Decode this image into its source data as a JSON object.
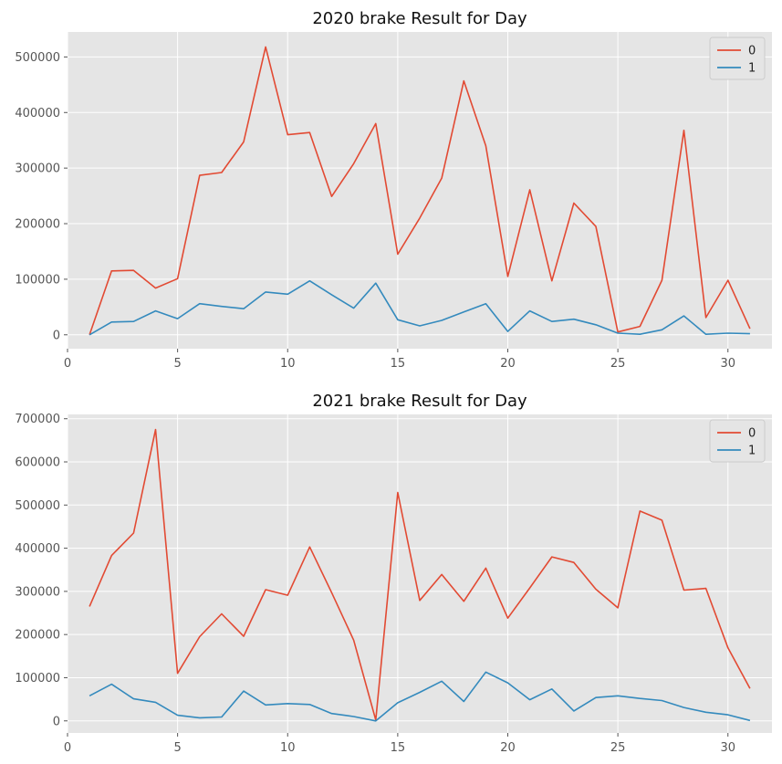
{
  "chart_data": [
    {
      "type": "line",
      "title": "2020 brake Result for Day",
      "xlabel": "",
      "ylabel": "",
      "xlim": [
        0,
        32
      ],
      "ylim": [
        -25000,
        545000
      ],
      "xticks": [
        0,
        5,
        10,
        15,
        20,
        25,
        30
      ],
      "yticks": [
        0,
        100000,
        200000,
        300000,
        400000,
        500000
      ],
      "grid": true,
      "legend": "top-right",
      "x": [
        1,
        2,
        3,
        4,
        5,
        6,
        7,
        8,
        9,
        10,
        11,
        12,
        13,
        14,
        15,
        16,
        17,
        18,
        19,
        20,
        21,
        22,
        23,
        24,
        25,
        26,
        27,
        28,
        29,
        30,
        31
      ],
      "series": [
        {
          "name": "0",
          "color": "#E24A33",
          "values": [
            0,
            115000,
            116000,
            84000,
            101000,
            287000,
            292000,
            347000,
            518000,
            360000,
            364000,
            249000,
            308000,
            380000,
            145000,
            210000,
            282000,
            457000,
            340000,
            105000,
            261000,
            97000,
            237000,
            195000,
            5000,
            15000,
            98000,
            368000,
            31000,
            98000,
            11000
          ]
        },
        {
          "name": "1",
          "color": "#348ABD",
          "values": [
            0,
            23000,
            24000,
            43000,
            29000,
            56000,
            51000,
            47000,
            77000,
            73000,
            97000,
            72000,
            48000,
            93000,
            27000,
            16000,
            26000,
            41000,
            56000,
            6000,
            43000,
            24000,
            28000,
            18000,
            3000,
            1000,
            9000,
            34000,
            1000,
            3000,
            2000
          ]
        }
      ]
    },
    {
      "type": "line",
      "title": "2021 brake Result for Day",
      "xlabel": "",
      "ylabel": "",
      "xlim": [
        0,
        32
      ],
      "ylim": [
        -28000,
        710000
      ],
      "xticks": [
        0,
        5,
        10,
        15,
        20,
        25,
        30
      ],
      "yticks": [
        0,
        100000,
        200000,
        300000,
        400000,
        500000,
        600000,
        700000
      ],
      "grid": true,
      "legend": "top-right",
      "x": [
        1,
        2,
        3,
        4,
        5,
        6,
        7,
        8,
        9,
        10,
        11,
        12,
        13,
        14,
        15,
        16,
        17,
        18,
        19,
        20,
        21,
        22,
        23,
        24,
        25,
        26,
        27,
        28,
        29,
        30,
        31
      ],
      "series": [
        {
          "name": "0",
          "color": "#E24A33",
          "values": [
            265000,
            383000,
            435000,
            675000,
            110000,
            195000,
            248000,
            196000,
            304000,
            291000,
            403000,
            297000,
            187000,
            2000,
            529000,
            279000,
            339000,
            277000,
            354000,
            238000,
            308000,
            380000,
            367000,
            305000,
            262000,
            486000,
            465000,
            303000,
            307000,
            169000,
            75000
          ]
        },
        {
          "name": "1",
          "color": "#348ABD",
          "values": [
            58000,
            85000,
            51000,
            43000,
            13000,
            7000,
            9000,
            69000,
            37000,
            40000,
            38000,
            17000,
            10000,
            0,
            42000,
            66000,
            92000,
            45000,
            113000,
            88000,
            49000,
            74000,
            23000,
            54000,
            58000,
            52000,
            47000,
            31000,
            20000,
            14000,
            1000
          ]
        }
      ]
    }
  ]
}
